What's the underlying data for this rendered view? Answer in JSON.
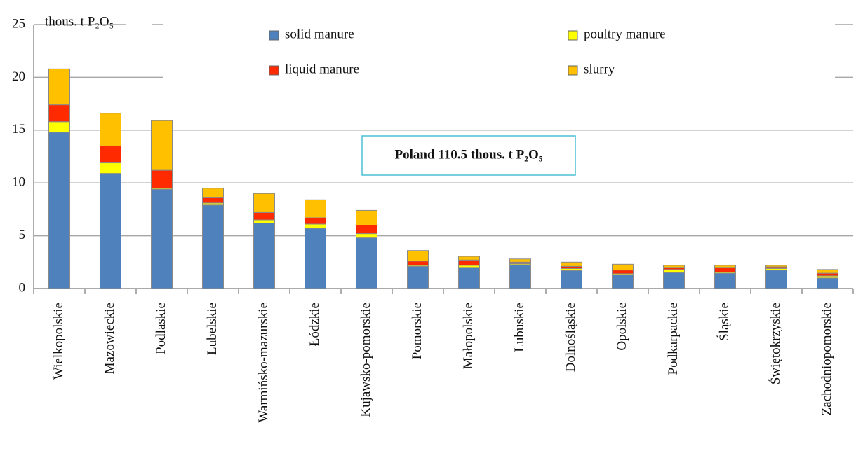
{
  "chart_data": {
    "type": "stacked_bar",
    "y_axis_label": "thous. t P₂O₅",
    "annotation": "Poland 110.5 thous. t P₂O₅",
    "categories": [
      "Wielkopolskie",
      "Mazowieckie",
      "Podlaskie",
      "Lubelskie",
      "Warmińsko-mazurskie",
      "Łódzkie",
      "Kujawsko-pomorskie",
      "Pomorskie",
      "Małopolskie",
      "Lubuskie",
      "Dolnośląskie",
      "Opolskie",
      "Podkarpackie",
      "Śląskie",
      "Świętokrzyskie",
      "Zachodniopomorskie"
    ],
    "series": [
      {
        "name": "solid manure",
        "color": "#4f81bd",
        "values": [
          14.8,
          10.9,
          9.4,
          7.9,
          6.2,
          5.7,
          4.8,
          2.1,
          2.0,
          2.25,
          1.7,
          1.3,
          1.5,
          1.45,
          1.75,
          1.0
        ]
      },
      {
        "name": "poultry manure",
        "color": "#ffff00",
        "values": [
          1.0,
          1.0,
          0.1,
          0.2,
          0.3,
          0.4,
          0.4,
          0.1,
          0.2,
          0.1,
          0.2,
          0.1,
          0.3,
          0.1,
          0.15,
          0.2
        ]
      },
      {
        "name": "liquid manure",
        "color": "#ff2a00",
        "values": [
          1.6,
          1.6,
          1.7,
          0.5,
          0.7,
          0.6,
          0.8,
          0.4,
          0.5,
          0.15,
          0.2,
          0.35,
          0.2,
          0.45,
          0.15,
          0.25
        ]
      },
      {
        "name": "slurry",
        "color": "#ffc000",
        "values": [
          3.4,
          3.1,
          4.7,
          0.9,
          1.8,
          1.7,
          1.4,
          1.0,
          0.35,
          0.3,
          0.4,
          0.55,
          0.2,
          0.2,
          0.15,
          0.35
        ]
      }
    ],
    "ylim": [
      0,
      25
    ],
    "yticks": [
      0,
      5,
      10,
      15,
      20,
      25
    ],
    "grid": true
  }
}
